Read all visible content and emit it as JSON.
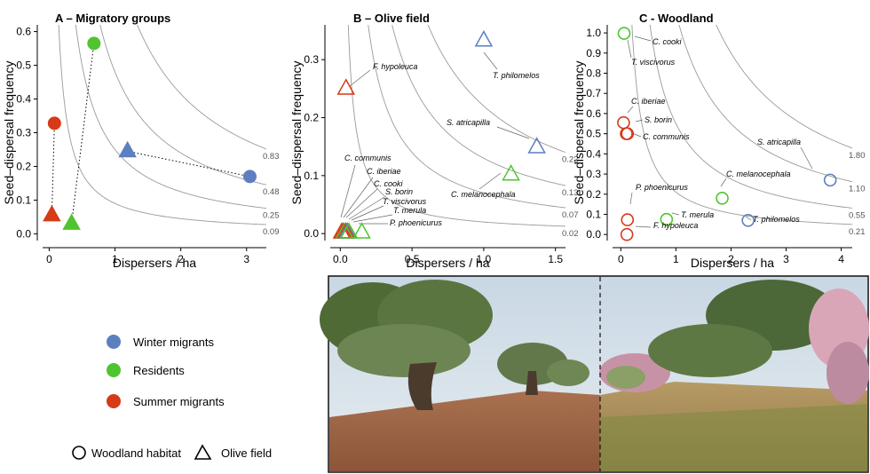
{
  "colors": {
    "winter": "#5b7fbf",
    "resident": "#4fc42f",
    "summer": "#d63a17",
    "isoline": "#9a9a9a",
    "axis": "#000000"
  },
  "legend": {
    "groups": [
      {
        "key": "winter",
        "label": "Winter migrants"
      },
      {
        "key": "resident",
        "label": "Residents"
      },
      {
        "key": "summer",
        "label": "Summer migrants"
      }
    ],
    "habitats": [
      {
        "shape": "circle",
        "label": "Woodland habitat"
      },
      {
        "shape": "triangle",
        "label": "Olive field"
      }
    ]
  },
  "photo": {
    "description_key": "habitat-panorama",
    "divider": "dashed"
  },
  "chart_data": [
    {
      "type": "scatter",
      "title": "A – Migratory groups",
      "xlabel": "Dispersers / ha",
      "ylabel": "Seed–dispersal frequency",
      "xlim": [
        -0.1,
        3.3
      ],
      "ylim": [
        -0.02,
        0.62
      ],
      "xticks": [
        0,
        1,
        2,
        3
      ],
      "yticks": [
        0.0,
        0.1,
        0.2,
        0.3,
        0.4,
        0.5,
        0.6
      ],
      "ytick_labels": [
        "0.0",
        "0.1",
        "0.2",
        "0.3",
        "0.4",
        "0.5",
        "0.6"
      ],
      "isolines": [
        0.83,
        0.48,
        0.25,
        0.09
      ],
      "isoline_labels": [
        "0.83",
        "0.48",
        "0.25",
        "0.09"
      ],
      "points": [
        {
          "group": "winter",
          "habitat": "woodland",
          "x": 3.05,
          "y": 0.17
        },
        {
          "group": "winter",
          "habitat": "olive",
          "x": 1.19,
          "y": 0.245
        },
        {
          "group": "resident",
          "habitat": "woodland",
          "x": 0.68,
          "y": 0.565
        },
        {
          "group": "resident",
          "habitat": "olive",
          "x": 0.34,
          "y": 0.03
        },
        {
          "group": "summer",
          "habitat": "woodland",
          "x": 0.08,
          "y": 0.328
        },
        {
          "group": "summer",
          "habitat": "olive",
          "x": 0.04,
          "y": 0.055
        }
      ],
      "links": [
        [
          "winter"
        ],
        [
          "resident"
        ],
        [
          "summer"
        ]
      ]
    },
    {
      "type": "scatter",
      "title": "B – Olive field",
      "xlabel": "Dispersers / ha",
      "ylabel": "Seed–dispersal frequency",
      "xlim": [
        -0.07,
        1.57
      ],
      "ylim": [
        -0.012,
        0.36
      ],
      "xticks": [
        0.0,
        0.5,
        1.0,
        1.5
      ],
      "xtick_labels": [
        "0.0",
        "0.5",
        "1.0",
        "1.5"
      ],
      "yticks": [
        0.0,
        0.1,
        0.2,
        0.3
      ],
      "ytick_labels": [
        "0.0",
        "0.1",
        "0.2",
        "0.3"
      ],
      "isolines": [
        0.22,
        0.13,
        0.07,
        0.02
      ],
      "isoline_labels": [
        "0.22",
        "0.13",
        "0.07",
        "0.02"
      ],
      "points": [
        {
          "species": "T. philomelos",
          "group": "winter",
          "x": 1.0,
          "y": 0.333
        },
        {
          "species": "S. atricapilla",
          "group": "winter",
          "x": 1.37,
          "y": 0.149
        },
        {
          "species": "F. hypoleuca",
          "group": "summer",
          "x": 0.04,
          "y": 0.25
        },
        {
          "species": "C. melanocephala",
          "group": "resident",
          "x": 1.19,
          "y": 0.102
        },
        {
          "species": "C. communis",
          "group": "summer",
          "x": 0.01,
          "y": 0.002
        },
        {
          "species": "C. iberiae",
          "group": "summer",
          "x": 0.02,
          "y": 0.002
        },
        {
          "species": "C. cooki",
          "group": "resident",
          "x": 0.03,
          "y": 0.002
        },
        {
          "species": "S. borin",
          "group": "summer",
          "x": 0.04,
          "y": 0.002
        },
        {
          "species": "T. viscivorus",
          "group": "winter",
          "x": 0.05,
          "y": 0.002
        },
        {
          "species": "T. merula",
          "group": "resident",
          "x": 0.06,
          "y": 0.002
        },
        {
          "species": "P. phoenicurus",
          "group": "resident",
          "x": 0.15,
          "y": 0.002
        }
      ]
    },
    {
      "type": "scatter",
      "title": "C - Woodland",
      "xlabel": "Dispersers / ha",
      "ylabel": "Seed–dispersal frequency",
      "xlim": [
        -0.15,
        4.2
      ],
      "ylim": [
        -0.03,
        1.04
      ],
      "xticks": [
        0,
        1,
        2,
        3,
        4
      ],
      "yticks": [
        0.0,
        0.1,
        0.2,
        0.3,
        0.4,
        0.5,
        0.6,
        0.7,
        0.8,
        0.9,
        1.0
      ],
      "ytick_labels": [
        "0.0",
        "0.1",
        "0.2",
        "0.3",
        "0.4",
        "0.5",
        "0.6",
        "0.7",
        "0.8",
        "0.9",
        "1.0"
      ],
      "isolines": [
        1.8,
        1.1,
        0.55,
        0.21
      ],
      "isoline_labels": [
        "1.80",
        "1.10",
        "0.55",
        "0.21"
      ],
      "points": [
        {
          "species": "C. cooki",
          "group": "resident",
          "x": 0.06,
          "y": 0.998
        },
        {
          "species": "T. viscivorus",
          "group": "winter",
          "x": 0.06,
          "y": 0.998
        },
        {
          "species": "C. iberiae",
          "group": "summer",
          "x": 0.05,
          "y": 0.555
        },
        {
          "species": "S. borin",
          "group": "summer",
          "x": 0.1,
          "y": 0.5
        },
        {
          "species": "C. communis",
          "group": "summer",
          "x": 0.12,
          "y": 0.5
        },
        {
          "species": "S. atricapilla",
          "group": "winter",
          "x": 3.8,
          "y": 0.27
        },
        {
          "species": "C. melanocephala",
          "group": "resident",
          "x": 1.84,
          "y": 0.18
        },
        {
          "species": "P. phoenicurus",
          "group": "summer",
          "x": 0.12,
          "y": 0.073
        },
        {
          "species": "T. merula",
          "group": "resident",
          "x": 0.83,
          "y": 0.075
        },
        {
          "species": "T. philomelos",
          "group": "winter",
          "x": 2.31,
          "y": 0.07
        },
        {
          "species": "F. hypoleuca",
          "group": "summer",
          "x": 0.11,
          "y": 0.0
        }
      ]
    }
  ]
}
